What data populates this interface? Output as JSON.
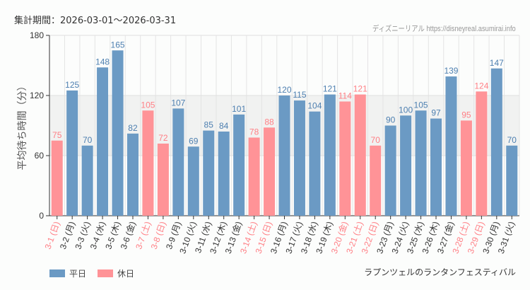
{
  "header": {
    "period": "集計期間：2026-03-01～2026-03-31",
    "credit": "ディズニーリアル https://disneyreal.asumirai.info"
  },
  "footer": {
    "attraction": "ラプンツェルのランタンフェスティバル"
  },
  "chart_data": {
    "type": "bar",
    "ylabel": "平均待ち時間（分）",
    "ylim": [
      0,
      180
    ],
    "yticks": [
      0,
      60,
      120,
      180
    ],
    "grid": true,
    "shaded_band": [
      60,
      120
    ],
    "legend_placement": "bottom-left",
    "colors": {
      "weekday": "#6b9ac4",
      "holiday": "#ff9397",
      "holiday_label": "#ff7f85"
    },
    "legend": [
      {
        "key": "weekday",
        "label": "平日"
      },
      {
        "key": "holiday",
        "label": "休日"
      }
    ],
    "categories": [
      "3-1 (日)",
      "3-2 (月)",
      "3-3 (火)",
      "3-4 (水)",
      "3-5 (木)",
      "3-6 (金)",
      "3-7 (土)",
      "3-8 (日)",
      "3-9 (月)",
      "3-10 (火)",
      "3-11 (水)",
      "3-12 (木)",
      "3-13 (金)",
      "3-14 (土)",
      "3-15 (日)",
      "3-16 (月)",
      "3-17 (火)",
      "3-18 (水)",
      "3-19 (木)",
      "3-20 (金)",
      "3-21 (土)",
      "3-22 (日)",
      "3-23 (月)",
      "3-24 (火)",
      "3-25 (水)",
      "3-26 (木)",
      "3-27 (金)",
      "3-28 (土)",
      "3-29 (日)",
      "3-30 (月)",
      "3-31 (火)"
    ],
    "values": [
      75,
      125,
      70,
      148,
      165,
      82,
      105,
      72,
      107,
      69,
      85,
      84,
      101,
      78,
      88,
      120,
      115,
      104,
      121,
      114,
      121,
      70,
      90,
      100,
      105,
      97,
      139,
      95,
      124,
      147,
      70
    ],
    "day_type": [
      "holiday",
      "weekday",
      "weekday",
      "weekday",
      "weekday",
      "weekday",
      "holiday",
      "holiday",
      "weekday",
      "weekday",
      "weekday",
      "weekday",
      "weekday",
      "holiday",
      "holiday",
      "weekday",
      "weekday",
      "weekday",
      "weekday",
      "holiday",
      "holiday",
      "holiday",
      "weekday",
      "weekday",
      "weekday",
      "weekday",
      "weekday",
      "holiday",
      "holiday",
      "weekday",
      "weekday"
    ]
  }
}
